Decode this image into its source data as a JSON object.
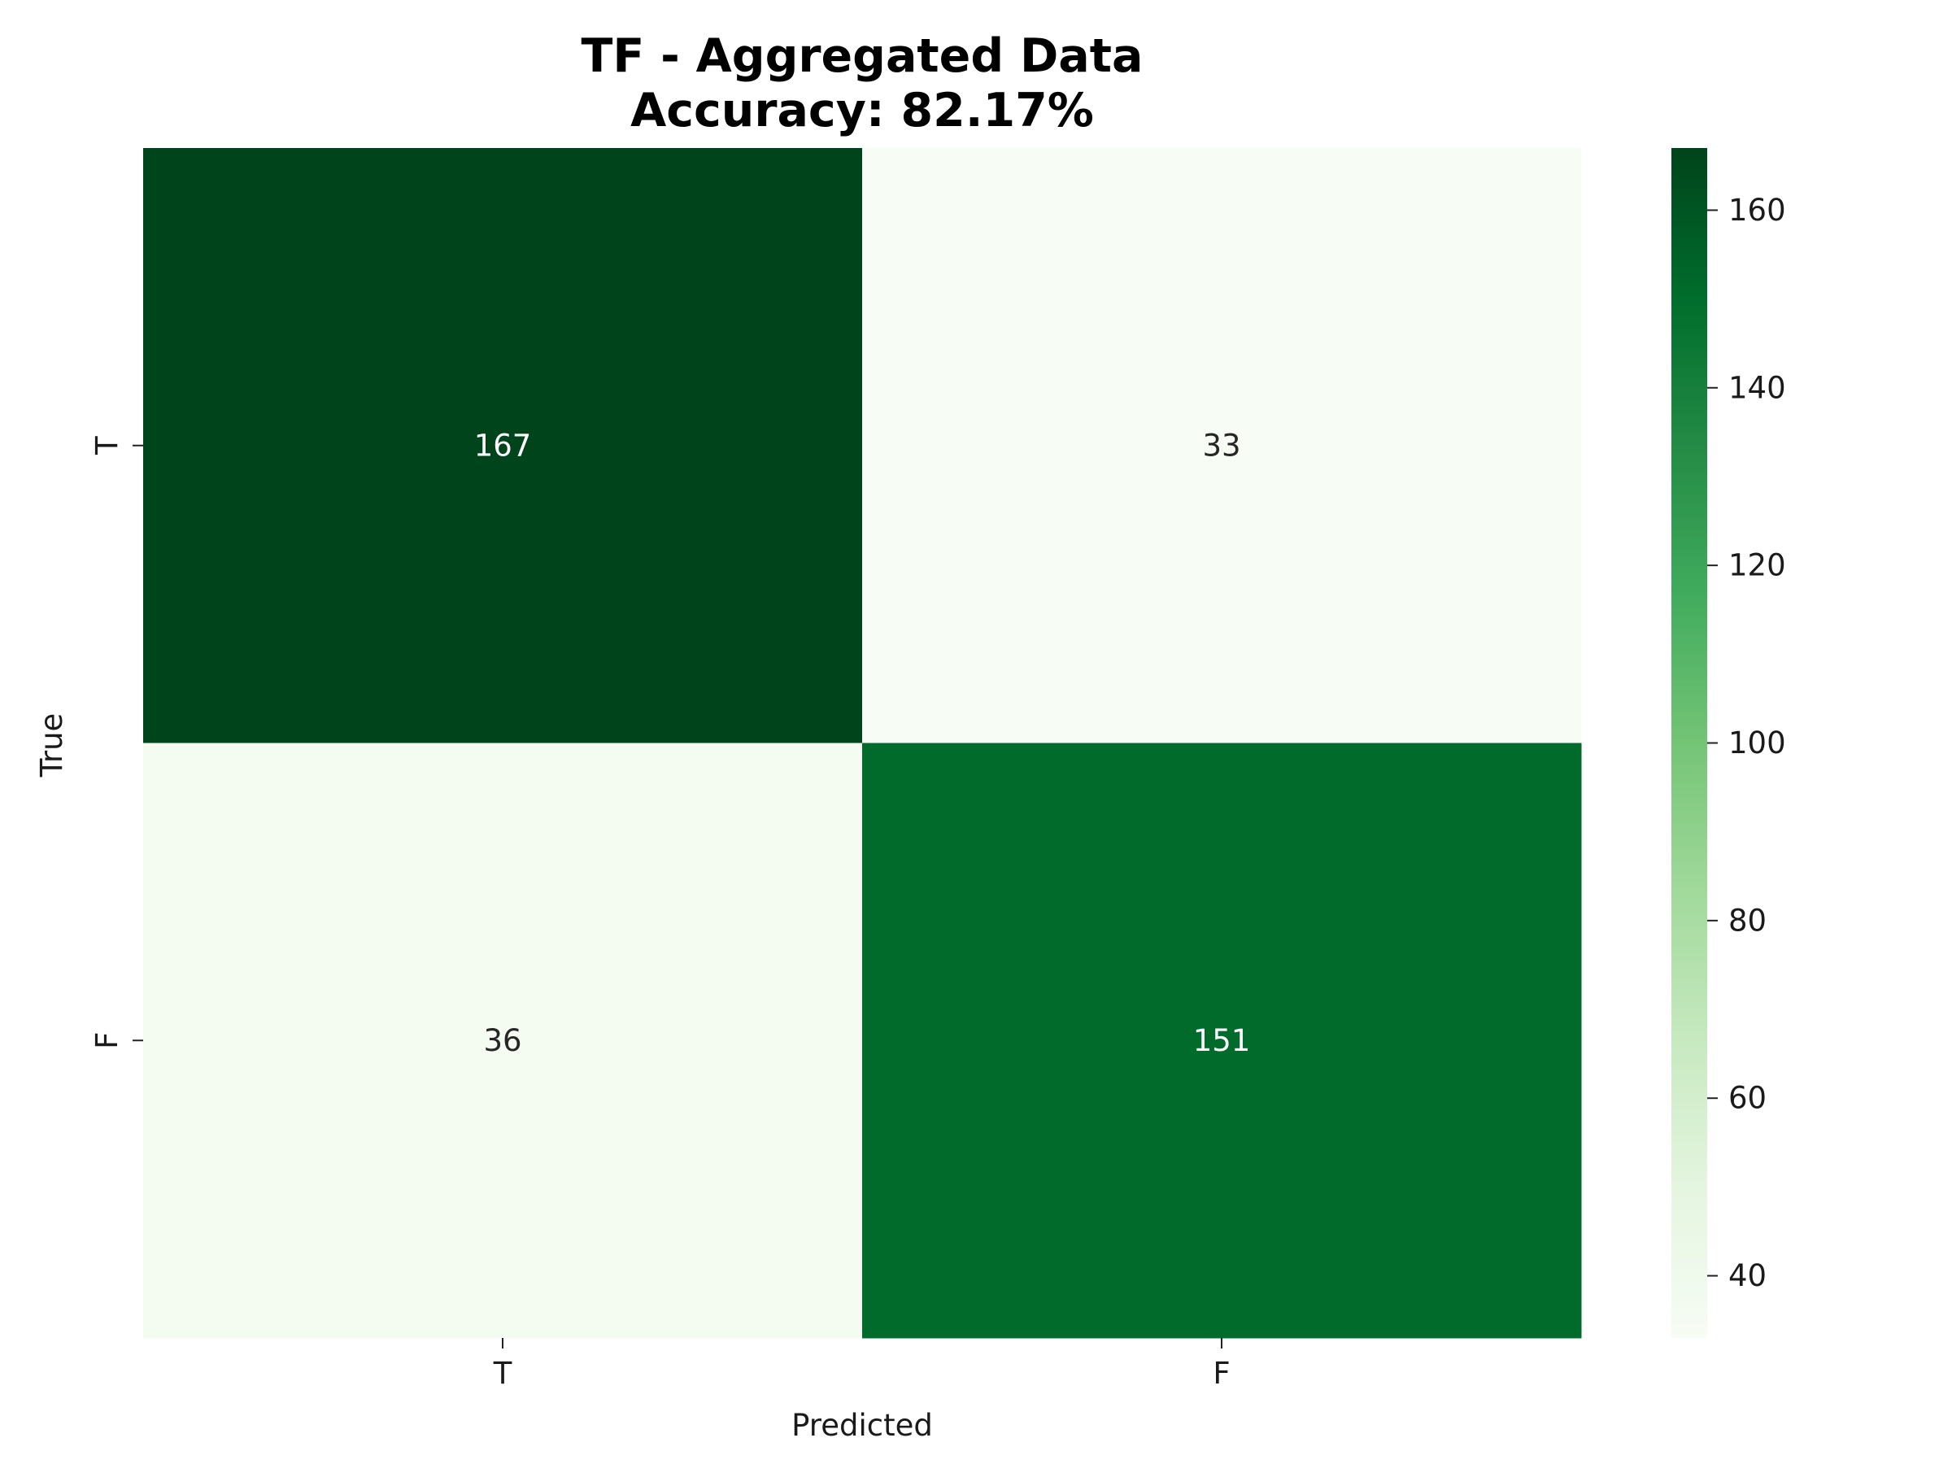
{
  "chart_data": {
    "type": "heatmap",
    "title": "TF - Aggregated Data",
    "subtitle": "Accuracy: 82.17%",
    "xlabel": "Predicted",
    "ylabel": "True",
    "x_categories": [
      "T",
      "F"
    ],
    "y_categories": [
      "T",
      "F"
    ],
    "values": [
      [
        167,
        33
      ],
      [
        36,
        151
      ]
    ],
    "colormap": "Greens",
    "colorbar": {
      "vmin": 33,
      "vmax": 167,
      "ticks": [
        40,
        60,
        80,
        100,
        120,
        140,
        160
      ]
    },
    "grid": false
  }
}
